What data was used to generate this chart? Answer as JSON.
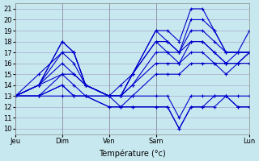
{
  "title": "",
  "xlabel": "Température (°c)",
  "ylabel": "",
  "bg_color": "#c8e8f0",
  "grid_color": "#aaaacc",
  "line_color": "#0000cc",
  "day_labels": [
    "Jeu",
    "Dim",
    "Ven",
    "Sam",
    "Lun"
  ],
  "day_positions": [
    0,
    24,
    48,
    72,
    120
  ],
  "ylim": [
    9.5,
    21.5
  ],
  "yticks": [
    10,
    11,
    12,
    13,
    14,
    15,
    16,
    17,
    18,
    19,
    20,
    21
  ],
  "xlim": [
    0,
    120
  ],
  "series": [
    {
      "x": [
        0,
        12,
        24,
        30,
        36,
        48,
        54,
        60,
        72,
        78,
        84,
        90,
        96,
        102,
        108,
        114,
        120
      ],
      "y": [
        13,
        14,
        18,
        17,
        14,
        13,
        14,
        15,
        19,
        19,
        18,
        21,
        21,
        19,
        17,
        17,
        19
      ]
    },
    {
      "x": [
        0,
        12,
        24,
        30,
        36,
        48,
        54,
        60,
        72,
        78,
        84,
        90,
        96,
        102,
        108,
        114,
        120
      ],
      "y": [
        13,
        14,
        18,
        17,
        14,
        13,
        13,
        15,
        19,
        18,
        17,
        20,
        20,
        19,
        17,
        17,
        17
      ]
    },
    {
      "x": [
        0,
        12,
        24,
        30,
        36,
        48,
        54,
        60,
        72,
        78,
        84,
        90,
        96,
        102,
        108,
        114,
        120
      ],
      "y": [
        13,
        15,
        17,
        17,
        14,
        13,
        13,
        15,
        18,
        18,
        17,
        19,
        19,
        18,
        17,
        17,
        17
      ]
    },
    {
      "x": [
        0,
        12,
        24,
        30,
        36,
        48,
        54,
        60,
        72,
        78,
        84,
        90,
        96,
        102,
        108,
        114,
        120
      ],
      "y": [
        13,
        14,
        17,
        16,
        14,
        13,
        13,
        15,
        18,
        17,
        17,
        18,
        18,
        17,
        16,
        17,
        17
      ]
    },
    {
      "x": [
        0,
        12,
        24,
        30,
        36,
        48,
        54,
        60,
        72,
        78,
        84,
        90,
        96,
        102,
        108,
        114,
        120
      ],
      "y": [
        13,
        14,
        16,
        15,
        14,
        13,
        13,
        14,
        17,
        17,
        16,
        18,
        18,
        17,
        16,
        16,
        17
      ]
    },
    {
      "x": [
        0,
        12,
        24,
        30,
        36,
        48,
        54,
        60,
        72,
        78,
        84,
        90,
        96,
        102,
        108,
        114,
        120
      ],
      "y": [
        13,
        14,
        15,
        15,
        14,
        13,
        13,
        14,
        16,
        16,
        16,
        17,
        17,
        16,
        16,
        16,
        17
      ]
    },
    {
      "x": [
        0,
        12,
        24,
        30,
        36,
        48,
        54,
        60,
        72,
        78,
        84,
        90,
        96,
        102,
        108,
        114,
        120
      ],
      "y": [
        13,
        13,
        15,
        14,
        13,
        13,
        13,
        13,
        15,
        15,
        15,
        16,
        16,
        16,
        15,
        16,
        16
      ]
    },
    {
      "x": [
        0,
        12,
        24,
        30,
        36,
        48,
        54,
        60,
        72,
        78,
        84,
        90,
        96,
        102,
        108,
        114,
        120
      ],
      "y": [
        13,
        13,
        14,
        13,
        13,
        13,
        12,
        13,
        13,
        13,
        11,
        13,
        13,
        13,
        13,
        13,
        13
      ]
    },
    {
      "x": [
        0,
        12,
        24,
        30,
        36,
        48,
        54,
        60,
        72,
        78,
        84,
        90,
        96,
        102,
        108,
        114,
        120
      ],
      "y": [
        13,
        13,
        14,
        13,
        13,
        12,
        12,
        12,
        12,
        12,
        10,
        12,
        12,
        13,
        13,
        12,
        12
      ]
    },
    {
      "x": [
        0,
        12,
        24,
        30,
        36,
        48,
        54,
        60,
        72,
        78,
        84,
        90,
        96,
        102,
        108,
        114,
        120
      ],
      "y": [
        13,
        13,
        13,
        13,
        13,
        12,
        12,
        12,
        12,
        12,
        10,
        12,
        12,
        12,
        13,
        12,
        12
      ]
    }
  ]
}
